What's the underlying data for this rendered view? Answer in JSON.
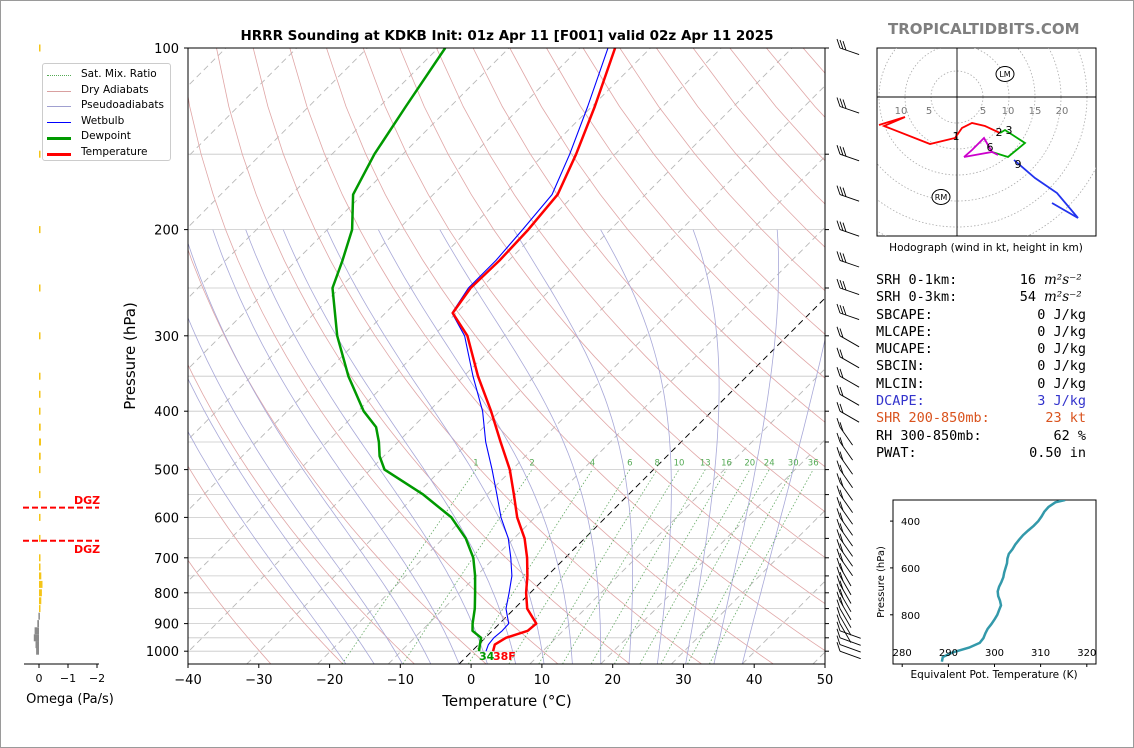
{
  "title": "HRRR Sounding at KDKB Init: 01z Apr 11 [F001] valid 02z Apr 11 2025",
  "brand": "TROPICALTIDBITS.COM",
  "skewt": {
    "xlabel": "Temperature (°C)",
    "ylabel": "Pressure (hPa)",
    "xlim": [
      -40,
      50
    ],
    "ylim": [
      1050,
      100
    ],
    "x_ticks": [
      "−40",
      "−30",
      "−20",
      "−10",
      "0",
      "10",
      "20",
      "30",
      "40",
      "50"
    ],
    "y_ticks": [
      "100",
      "200",
      "300",
      "400",
      "500",
      "600",
      "700",
      "800",
      "900",
      "1000"
    ],
    "surface_dewpoint_label": "34",
    "surface_temperature_label": "38F",
    "mixing_ratio_labels": [
      "1",
      "2",
      "4",
      "6",
      "8",
      "10",
      "13",
      "16",
      "20",
      "24",
      "30",
      "36"
    ],
    "colors": {
      "temperature": "#ff0000",
      "dewpoint": "#009900",
      "wetbulb": "#0000ff",
      "dgz": "#ff0000"
    }
  },
  "legend": [
    {
      "label": "Sat. Mix. Ratio",
      "color": "#55aa55",
      "style": "dotted"
    },
    {
      "label": "Dry Adiabats",
      "color": "#d9a0a0",
      "style": "solid"
    },
    {
      "label": "Pseudoadiabats",
      "color": "#a0a0d0",
      "style": "solid"
    },
    {
      "label": "Wetbulb",
      "color": "#0000ff",
      "style": "solid"
    },
    {
      "label": "Dewpoint",
      "color": "#009900",
      "style": "thick"
    },
    {
      "label": "Temperature",
      "color": "#ff0000",
      "style": "thick"
    }
  ],
  "omega": {
    "xlabel": "Omega (Pa/s)",
    "x_ticks": [
      "0",
      "−1",
      "−2"
    ],
    "dgz_label_top": "DGZ",
    "dgz_label_bottom": "DGZ"
  },
  "hodograph": {
    "caption": "Hodograph (wind in kt, height in km)",
    "ring_labels": [
      "10",
      "5",
      "5",
      "10",
      "15",
      "20"
    ],
    "height_labels": [
      "1",
      "2",
      "3",
      "6",
      "9"
    ],
    "lm_label": "LM",
    "rm_label": "RM"
  },
  "params": [
    {
      "label": "SRH 0-1km:",
      "value": "16",
      "unit": "m²s⁻²",
      "color": "#000000"
    },
    {
      "label": "SRH 0-3km:",
      "value": "54",
      "unit": "m²s⁻²",
      "color": "#000000"
    },
    {
      "label": "SBCAPE:",
      "value": "0 J/kg",
      "unit": "",
      "color": "#000000"
    },
    {
      "label": "MLCAPE:",
      "value": "0 J/kg",
      "unit": "",
      "color": "#000000"
    },
    {
      "label": "MUCAPE:",
      "value": "0 J/kg",
      "unit": "",
      "color": "#000000"
    },
    {
      "label": "SBCIN:",
      "value": "0 J/kg",
      "unit": "",
      "color": "#000000"
    },
    {
      "label": "MLCIN:",
      "value": "0 J/kg",
      "unit": "",
      "color": "#000000"
    },
    {
      "label": "DCAPE:",
      "value": "3 J/kg",
      "unit": "",
      "color": "#3333cc"
    },
    {
      "label": "SHR 200-850mb:",
      "value": "23 kt",
      "unit": "",
      "color": "#d9531e"
    },
    {
      "label": "RH 300-850mb:",
      "value": "62 %",
      "unit": "",
      "color": "#000000"
    },
    {
      "label": "PWAT:",
      "value": "0.50 in",
      "unit": "",
      "color": "#000000"
    }
  ],
  "theta_e_panel": {
    "xlabel": "Equivalent Pot. Temperature (K)",
    "ylabel": "Pressure (hPa)",
    "x_ticks": [
      "280",
      "290",
      "300",
      "310",
      "320"
    ],
    "y_ticks": [
      "400",
      "600",
      "800"
    ],
    "color": "#3399aa"
  },
  "chart_data": [
    {
      "type": "line",
      "title": "HRRR Sounding at KDKB Init: 01z Apr 11 [F001] valid 02z Apr 11 2025",
      "xlabel": "Temperature (°C)",
      "ylabel": "Pressure (hPa)",
      "xlim": [
        -40,
        50
      ],
      "ylim": [
        1050,
        100
      ],
      "y_scale": "log",
      "series": [
        {
          "name": "Temperature",
          "points": [
            [
              1000,
              3.0
            ],
            [
              975,
              2.3
            ],
            [
              950,
              2.9
            ],
            [
              925,
              5.0
            ],
            [
              900,
              5.2
            ],
            [
              850,
              1.8
            ],
            [
              800,
              -0.6
            ],
            [
              750,
              -2.8
            ],
            [
              700,
              -5.4
            ],
            [
              650,
              -8.5
            ],
            [
              600,
              -12.5
            ],
            [
              550,
              -16.2
            ],
            [
              500,
              -20.3
            ],
            [
              450,
              -25.5
            ],
            [
              400,
              -31.2
            ],
            [
              350,
              -38.0
            ],
            [
              300,
              -45.2
            ],
            [
              275,
              -50.5
            ],
            [
              250,
              -51.5
            ],
            [
              225,
              -51.3
            ],
            [
              200,
              -51.6
            ],
            [
              175,
              -52.4
            ],
            [
              150,
              -55.5
            ],
            [
              125,
              -59.6
            ],
            [
              100,
              -65.0
            ]
          ]
        },
        {
          "name": "Dewpoint",
          "points": [
            [
              1000,
              1.0
            ],
            [
              975,
              0.2
            ],
            [
              950,
              -0.6
            ],
            [
              925,
              -2.8
            ],
            [
              900,
              -3.8
            ],
            [
              850,
              -5.6
            ],
            [
              800,
              -7.8
            ],
            [
              750,
              -10.2
            ],
            [
              700,
              -13.0
            ],
            [
              650,
              -16.8
            ],
            [
              600,
              -21.8
            ],
            [
              550,
              -29.0
            ],
            [
              500,
              -38.0
            ],
            [
              475,
              -40.6
            ],
            [
              450,
              -42.7
            ],
            [
              425,
              -45.2
            ],
            [
              400,
              -49.2
            ],
            [
              350,
              -56.3
            ],
            [
              300,
              -63.6
            ],
            [
              250,
              -71.0
            ],
            [
              225,
              -73.5
            ],
            [
              200,
              -76.5
            ],
            [
              175,
              -81.3
            ],
            [
              150,
              -84.0
            ],
            [
              125,
              -86.3
            ],
            [
              100,
              -89.0
            ]
          ]
        },
        {
          "name": "Wetbulb",
          "points": [
            [
              1000,
              2.0
            ],
            [
              975,
              1.4
            ],
            [
              950,
              1.2
            ],
            [
              925,
              1.4
            ],
            [
              900,
              1.3
            ],
            [
              850,
              -1.2
            ],
            [
              800,
              -3.0
            ],
            [
              750,
              -5.0
            ],
            [
              700,
              -7.7
            ],
            [
              650,
              -10.8
            ],
            [
              600,
              -14.8
            ],
            [
              550,
              -18.6
            ],
            [
              500,
              -22.8
            ],
            [
              450,
              -27.6
            ],
            [
              400,
              -32.4
            ],
            [
              350,
              -38.7
            ],
            [
              300,
              -45.6
            ],
            [
              275,
              -50.6
            ],
            [
              250,
              -51.8
            ],
            [
              225,
              -51.8
            ],
            [
              200,
              -52.4
            ],
            [
              175,
              -53.2
            ],
            [
              150,
              -56.4
            ],
            [
              125,
              -60.6
            ],
            [
              100,
              -66.0
            ]
          ]
        }
      ]
    },
    {
      "type": "bar",
      "title": "",
      "xlabel": "Omega (Pa/s)",
      "ylabel": "",
      "xlim": [
        0.3,
        -2
      ],
      "series": [
        {
          "name": "",
          "points": [
            [
              1000,
              0.1
            ],
            [
              975,
              0.12
            ],
            [
              950,
              0.18
            ],
            [
              925,
              0.15
            ],
            [
              900,
              0.06
            ],
            [
              875,
              0.02
            ],
            [
              850,
              -0.05
            ],
            [
              825,
              -0.08
            ],
            [
              800,
              -0.1
            ],
            [
              775,
              -0.12
            ],
            [
              750,
              -0.08
            ],
            [
              725,
              -0.04
            ],
            [
              700,
              -0.02
            ],
            [
              650,
              -0.02
            ],
            [
              600,
              -0.02
            ],
            [
              550,
              -0.04
            ],
            [
              500,
              -0.05
            ],
            [
              475,
              -0.06
            ],
            [
              450,
              -0.07
            ],
            [
              425,
              -0.06
            ],
            [
              400,
              -0.05
            ],
            [
              375,
              -0.05
            ],
            [
              350,
              -0.04
            ],
            [
              300,
              -0.04
            ],
            [
              250,
              -0.04
            ],
            [
              200,
              -0.03
            ],
            [
              150,
              -0.02
            ],
            [
              100,
              -0.02
            ]
          ]
        }
      ],
      "dgz_levels_hpa": [
        578,
        656
      ]
    },
    {
      "type": "line",
      "title": "Hodograph (wind in kt, height in km)",
      "xlabel": "",
      "ylabel": "",
      "series": [
        {
          "name": "",
          "points": [
            [
              0.3,
              -0.3
            ],
            [
              -4,
              -4.4
            ],
            [
              -10,
              -3
            ],
            [
              -15,
              -2.1
            ],
            [
              -12,
              -1.4
            ],
            [
              -9,
              -0.4
            ],
            [
              -4.6,
              0.4
            ],
            [
              -1.4,
              1.0
            ],
            [
              0,
              1.0
            ],
            [
              1.7,
              2.0
            ],
            [
              3.2,
              3.3
            ],
            [
              4,
              2.6
            ],
            [
              5.6,
              1.2
            ],
            [
              4.3,
              0.4
            ],
            [
              2.3,
              -0.2
            ],
            [
              3.5,
              -1.1
            ],
            [
              5.4,
              -1.6
            ],
            [
              5.5,
              -2.4
            ],
            [
              4.4,
              -3.7
            ],
            [
              2.8,
              -5.4
            ],
            [
              1.4,
              -7.7
            ],
            [
              0.9,
              -9.9
            ],
            [
              0.7,
              -11.3
            ],
            [
              0.4,
              -12.3
            ],
            [
              0.2,
              -12.9
            ],
            [
              0.1,
              -12.4
            ],
            [
              0.5,
              -10.5
            ],
            [
              0.9,
              -9.1
            ],
            [
              1.3,
              -7.7
            ],
            [
              1.9,
              -5.5
            ],
            [
              2.4,
              -3.4
            ],
            [
              2.7,
              -1.6
            ],
            [
              3.1,
              0.2
            ],
            [
              3.9,
              2.5
            ],
            [
              4.7,
              4.7
            ],
            [
              5.4,
              6.7
            ],
            [
              5.9,
              8.1
            ],
            [
              6.3,
              9.8
            ],
            [
              6.9,
              11.8
            ],
            [
              7.5,
              14.3
            ],
            [
              8.3,
              18.4
            ],
            [
              9.4,
              21.7
            ],
            [
              10.5,
              24.7
            ],
            [
              11.8,
              27.6
            ],
            [
              13.3,
              30.1
            ],
            [
              14.8,
              32.2
            ],
            [
              16.3,
              33.9
            ],
            [
              17.8,
              35.6
            ],
            [
              19.0,
              37.5
            ],
            [
              19.8,
              39.0
            ],
            [
              20.2,
              41.2
            ],
            [
              20.4,
              43.4
            ],
            [
              20.9,
              45.6
            ],
            [
              21.5,
              48.7
            ]
          ]
        }
      ],
      "lm": [
        4,
        10
      ],
      "rm": [
        -1.2,
        -11
      ]
    },
    {
      "type": "line",
      "title": "",
      "xlabel": "Equivalent Pot. Temperature (K)",
      "ylabel": "Pressure (hPa)",
      "xlim": [
        278,
        322
      ],
      "ylim": [
        1010,
        310
      ],
      "series": [
        {
          "name": "",
          "points": [
            [
              1000,
              288.6
            ],
            [
              980,
              288.8
            ],
            [
              960,
              291.0
            ],
            [
              940,
              294.5
            ],
            [
              920,
              296.8
            ],
            [
              900,
              297.6
            ],
            [
              880,
              298.0
            ],
            [
              860,
              298.5
            ],
            [
              840,
              299.3
            ],
            [
              820,
              300.0
            ],
            [
              800,
              300.6
            ],
            [
              780,
              301.0
            ],
            [
              760,
              301.4
            ],
            [
              740,
              301.2
            ],
            [
              720,
              300.8
            ],
            [
              700,
              300.7
            ],
            [
              680,
              301.0
            ],
            [
              660,
              301.5
            ],
            [
              640,
              301.9
            ],
            [
              620,
              302.1
            ],
            [
              600,
              302.4
            ],
            [
              580,
              302.7
            ],
            [
              560,
              302.8
            ],
            [
              540,
              303.1
            ],
            [
              520,
              303.9
            ],
            [
              500,
              304.5
            ],
            [
              480,
              305.3
            ],
            [
              460,
              306.2
            ],
            [
              440,
              307.3
            ],
            [
              420,
              308.5
            ],
            [
              400,
              309.5
            ],
            [
              380,
              310.2
            ],
            [
              360,
              310.8
            ],
            [
              340,
              311.7
            ],
            [
              320,
              313.2
            ],
            [
              310,
              315.3
            ]
          ]
        }
      ]
    }
  ]
}
